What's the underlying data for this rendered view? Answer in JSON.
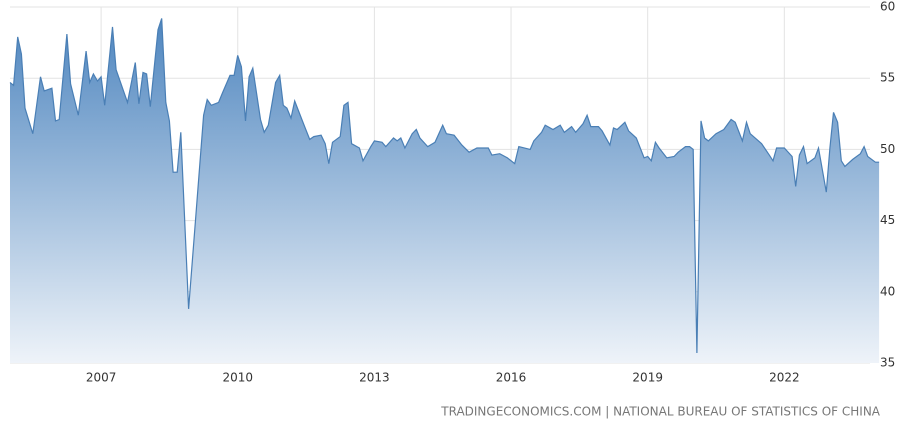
{
  "chart_data": {
    "type": "area",
    "source": "TRADINGECONOMICS.COM | NATIONAL BUREAU OF STATISTICS OF CHINA",
    "x": [
      2005.0,
      2005.08,
      2005.17,
      2005.25,
      2005.33,
      2005.5,
      2005.67,
      2005.75,
      2005.92,
      2006.0,
      2006.08,
      2006.25,
      2006.33,
      2006.5,
      2006.67,
      2006.75,
      2006.83,
      2006.92,
      2007.0,
      2007.08,
      2007.25,
      2007.33,
      2007.58,
      2007.75,
      2007.83,
      2007.92,
      2008.0,
      2008.08,
      2008.25,
      2008.33,
      2008.42,
      2008.5,
      2008.58,
      2008.67,
      2008.75,
      2008.92,
      2009.08,
      2009.25,
      2009.33,
      2009.42,
      2009.58,
      2009.67,
      2009.83,
      2009.92,
      2010.0,
      2010.08,
      2010.17,
      2010.25,
      2010.33,
      2010.5,
      2010.58,
      2010.67,
      2010.83,
      2010.92,
      2011.0,
      2011.08,
      2011.17,
      2011.25,
      2011.42,
      2011.58,
      2011.67,
      2011.83,
      2011.92,
      2012.0,
      2012.08,
      2012.25,
      2012.33,
      2012.42,
      2012.5,
      2012.67,
      2012.75,
      2012.92,
      2013.0,
      2013.17,
      2013.25,
      2013.42,
      2013.5,
      2013.58,
      2013.67,
      2013.83,
      2013.92,
      2014.0,
      2014.17,
      2014.33,
      2014.5,
      2014.58,
      2014.75,
      2014.92,
      2015.08,
      2015.25,
      2015.5,
      2015.58,
      2015.75,
      2015.92,
      2016.08,
      2016.17,
      2016.42,
      2016.5,
      2016.67,
      2016.75,
      2016.92,
      2017.08,
      2017.17,
      2017.33,
      2017.42,
      2017.58,
      2017.67,
      2017.75,
      2017.92,
      2018.0,
      2018.17,
      2018.25,
      2018.33,
      2018.5,
      2018.58,
      2018.75,
      2018.92,
      2019.0,
      2019.08,
      2019.17,
      2019.25,
      2019.42,
      2019.58,
      2019.67,
      2019.83,
      2019.92,
      2020.0,
      2020.08,
      2020.17,
      2020.25,
      2020.33,
      2020.5,
      2020.67,
      2020.83,
      2020.92,
      2021.08,
      2021.17,
      2021.25,
      2021.5,
      2021.67,
      2021.75,
      2021.83,
      2022.0,
      2022.17,
      2022.25,
      2022.33,
      2022.42,
      2022.5,
      2022.67,
      2022.75,
      2022.92,
      2023.0,
      2023.08,
      2023.17,
      2023.25,
      2023.33,
      2023.5,
      2023.67,
      2023.75,
      2023.83,
      2024.0,
      2024.08
    ],
    "values": [
      54.7,
      54.5,
      57.9,
      56.7,
      52.9,
      51.1,
      55.1,
      54.1,
      54.3,
      52.0,
      52.1,
      58.1,
      54.6,
      52.4,
      56.9,
      54.7,
      55.3,
      54.8,
      55.1,
      53.1,
      58.6,
      55.6,
      53.3,
      56.1,
      53.2,
      55.4,
      55.3,
      53.0,
      58.4,
      59.2,
      53.3,
      52.0,
      48.4,
      48.4,
      51.2,
      38.8,
      45.3,
      52.4,
      53.5,
      53.1,
      53.3,
      54.0,
      55.2,
      55.2,
      56.6,
      55.8,
      52.0,
      55.1,
      55.7,
      52.1,
      51.2,
      51.7,
      54.7,
      55.2,
      53.1,
      52.9,
      52.2,
      53.4,
      52.0,
      50.7,
      50.9,
      51.0,
      50.4,
      49.0,
      50.5,
      50.9,
      53.1,
      53.3,
      50.4,
      50.1,
      49.2,
      50.2,
      50.6,
      50.5,
      50.2,
      50.8,
      50.6,
      50.8,
      50.1,
      51.1,
      51.4,
      50.8,
      50.2,
      50.5,
      51.7,
      51.1,
      51.0,
      50.3,
      49.8,
      50.1,
      50.1,
      49.6,
      49.7,
      49.4,
      49.0,
      50.2,
      50.0,
      50.6,
      51.2,
      51.7,
      51.4,
      51.7,
      51.2,
      51.6,
      51.2,
      51.8,
      52.4,
      51.6,
      51.6,
      51.3,
      50.3,
      51.5,
      51.4,
      51.9,
      51.3,
      50.8,
      49.4,
      49.5,
      49.2,
      50.5,
      50.1,
      49.4,
      49.5,
      49.8,
      50.2,
      50.2,
      50.0,
      35.7,
      52.0,
      50.8,
      50.6,
      51.1,
      51.4,
      52.1,
      51.9,
      50.6,
      51.9,
      51.1,
      50.4,
      49.6,
      49.2,
      50.1,
      50.1,
      49.5,
      47.4,
      49.6,
      50.2,
      49.0,
      49.4,
      50.1,
      47.0,
      50.1,
      52.6,
      51.9,
      49.2,
      48.8,
      49.3,
      49.7,
      50.2,
      49.5,
      49.1,
      49.1
    ],
    "color": "#4a7fb5",
    "xlim": [
      2005.0,
      2024.1
    ],
    "xticks": [
      2007,
      2010,
      2013,
      2016,
      2019,
      2022
    ],
    "ylim": [
      35,
      60
    ],
    "yticks": [
      35,
      40,
      45,
      50,
      55,
      60
    ],
    "grid": true
  }
}
